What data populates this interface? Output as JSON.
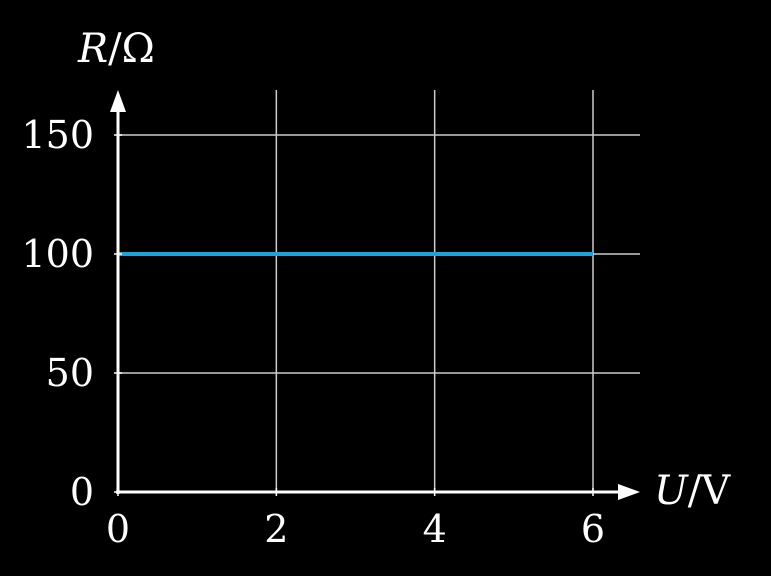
{
  "chart_data": {
    "type": "line",
    "x_axis": {
      "label_symbol": "U",
      "label_unit": "V",
      "range": [
        0,
        6.6
      ],
      "ticks": [
        0,
        2,
        4,
        6
      ],
      "tick_labels": [
        "0",
        "2",
        "4",
        "6"
      ]
    },
    "y_axis": {
      "label_symbol": "R",
      "label_unit": "Ω",
      "range": [
        0,
        170
      ],
      "ticks": [
        0,
        50,
        100,
        150
      ],
      "tick_labels": [
        "0",
        "50",
        "100",
        "150"
      ]
    },
    "grid": true,
    "background": "#000000",
    "series": [
      {
        "x": [
          0,
          6
        ],
        "y": [
          100,
          100
        ],
        "color": "#1fa2da"
      }
    ],
    "colors": {
      "axis": "#ffffff",
      "grid": "#cccccc",
      "text": "#ffffff"
    }
  }
}
